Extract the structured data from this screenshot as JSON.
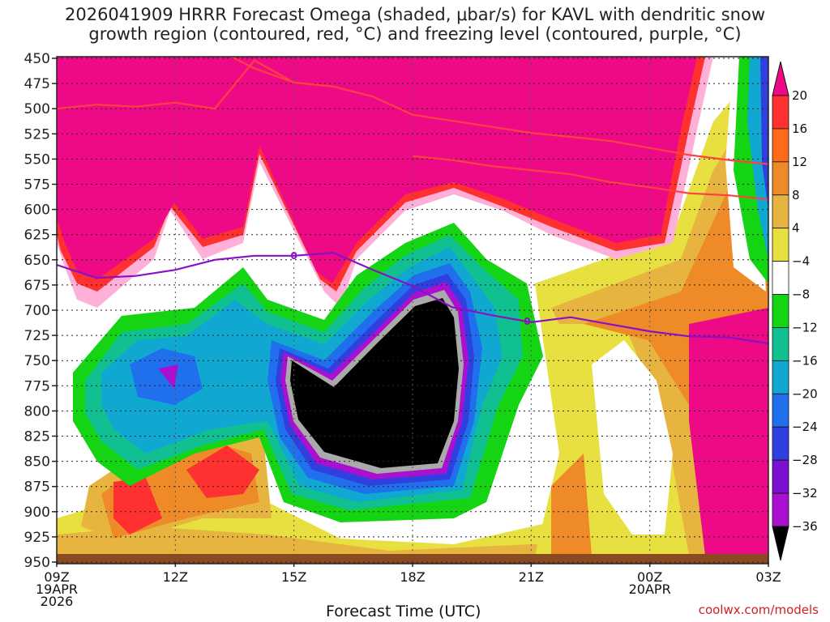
{
  "title": "2026041909 HRRR Forecast Omega (shaded, μbar/s) for KAVL with dendritic snow\ngrowth region (contoured, red, °C) and freezing level (contoured, purple, °C)",
  "credit": "coolwx.com/models",
  "chart_data": {
    "type": "heatmap",
    "title": "2026041909 HRRR Forecast Omega (shaded, μbar/s) for KAVL with dendritic snow growth region (contoured, red, °C) and freezing level (contoured, purple, °C)",
    "xlabel": "Forecast Time (UTC)",
    "ylabel": "",
    "x_range_hours": [
      0,
      18
    ],
    "y_range_hpa": [
      450,
      950
    ],
    "y_reversed": true,
    "x_ticks": [
      {
        "h": 0,
        "lines": [
          "09Z",
          "19APR",
          "2026"
        ]
      },
      {
        "h": 3,
        "lines": [
          "12Z"
        ]
      },
      {
        "h": 6,
        "lines": [
          "15Z"
        ]
      },
      {
        "h": 9,
        "lines": [
          "18Z"
        ]
      },
      {
        "h": 12,
        "lines": [
          "21Z"
        ]
      },
      {
        "h": 15,
        "lines": [
          "00Z",
          "20APR"
        ]
      },
      {
        "h": 18,
        "lines": [
          "03Z"
        ]
      }
    ],
    "y_ticks": [
      450,
      475,
      500,
      525,
      550,
      575,
      600,
      625,
      650,
      675,
      700,
      725,
      750,
      775,
      800,
      825,
      850,
      875,
      900,
      925,
      950
    ],
    "colorbar": {
      "labels": [
        "20",
        "16",
        "12",
        "8",
        "4",
        "−4",
        "−8",
        "−12",
        "−16",
        "−20",
        "−24",
        "−28",
        "−32",
        "−36"
      ],
      "colors": [
        "#ee0a87",
        "#ff3030",
        "#ff6a1a",
        "#ee8a28",
        "#e8b440",
        "#e8e040",
        "#ffffff",
        "#14d414",
        "#10c090",
        "#10a8d0",
        "#2070ee",
        "#3040e0",
        "#7a10d0",
        "#aa10d0",
        "#aaaaaa",
        "#000000"
      ]
    },
    "omega_regions": [
      {
        "level": "20",
        "color": "#ee0a87",
        "hpa": [
          450,
          650
        ]
      },
      {
        "level": "-36",
        "color": "#000000",
        "hpa": [
          650,
          850
        ]
      }
    ],
    "freezing_level": {
      "label": "0",
      "color": "#8a10c8",
      "points": [
        [
          0,
          655
        ],
        [
          1,
          668
        ],
        [
          2,
          666
        ],
        [
          3,
          660
        ],
        [
          4,
          650
        ],
        [
          5,
          646
        ],
        [
          6,
          646
        ],
        [
          7,
          643
        ],
        [
          8,
          660
        ],
        [
          9,
          676
        ],
        [
          10,
          697
        ],
        [
          11,
          705
        ],
        [
          12,
          712
        ],
        [
          13,
          707
        ],
        [
          14,
          714
        ],
        [
          15,
          721
        ],
        [
          16,
          726
        ],
        [
          17,
          727
        ],
        [
          18,
          733
        ]
      ],
      "labels_at_h": [
        6.0,
        11.9
      ]
    },
    "dgz_lines": [
      {
        "color": "#ff4040",
        "points": [
          [
            0,
            500
          ],
          [
            1,
            496
          ],
          [
            2,
            498
          ],
          [
            3,
            494
          ],
          [
            4,
            500
          ],
          [
            5,
            452
          ],
          [
            6,
            474
          ],
          [
            7,
            478
          ],
          [
            8,
            488
          ],
          [
            9,
            506
          ],
          [
            10,
            512
          ],
          [
            11,
            518
          ],
          [
            12,
            524
          ],
          [
            13,
            528
          ],
          [
            14,
            532
          ],
          [
            15,
            539
          ],
          [
            16,
            546
          ],
          [
            17,
            551
          ],
          [
            18,
            555
          ]
        ]
      },
      {
        "color": "#ff4040",
        "points": [
          [
            4,
            440
          ],
          [
            5,
            460
          ],
          [
            6,
            474
          ],
          [
            7,
            478
          ]
        ]
      },
      {
        "color": "#ff4040",
        "points": [
          [
            9,
            547
          ],
          [
            10,
            551
          ],
          [
            11,
            557
          ],
          [
            12,
            561
          ],
          [
            13,
            565
          ],
          [
            14,
            573
          ],
          [
            15,
            578
          ],
          [
            16,
            584
          ],
          [
            17,
            586
          ],
          [
            18,
            590
          ]
        ]
      }
    ]
  }
}
